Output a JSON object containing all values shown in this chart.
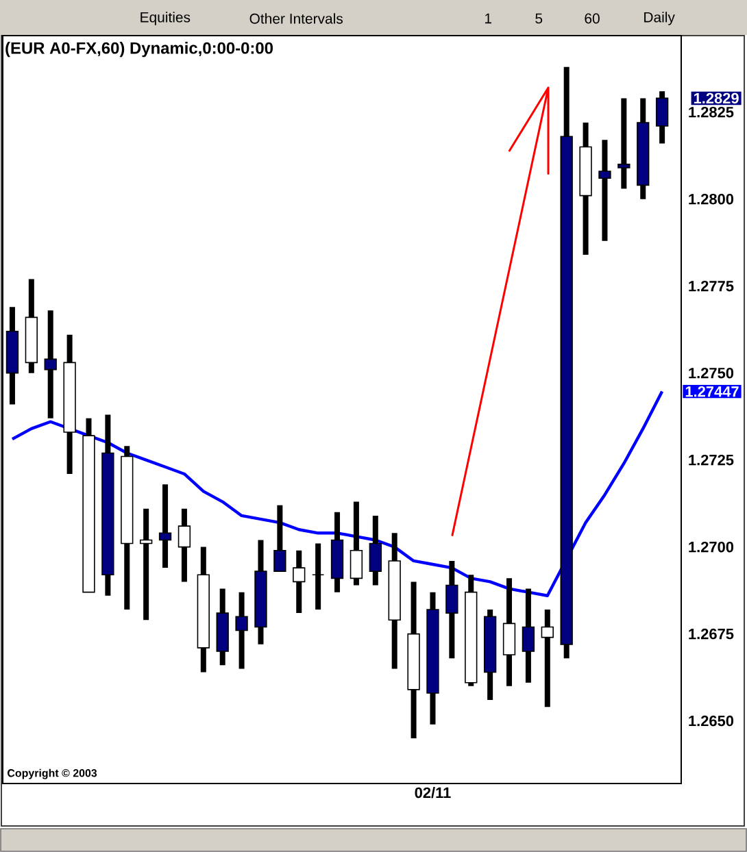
{
  "chart_data": {
    "type": "candlestick",
    "title": "(EUR A0-FX,60) Dynamic,0:00-0:00",
    "categories": [
      null,
      null,
      null,
      null,
      null,
      null,
      null,
      null,
      null,
      null,
      null,
      null,
      null,
      null,
      null,
      null,
      null,
      null,
      null,
      null,
      null,
      null,
      "02/11",
      null,
      null,
      null,
      null,
      null,
      null,
      null,
      null,
      null,
      null,
      null,
      null
    ],
    "ohlc": [
      [
        1.275,
        1.2769,
        1.2741,
        1.2762
      ],
      [
        1.2766,
        1.2777,
        1.275,
        1.2753
      ],
      [
        1.2751,
        1.2768,
        1.2737,
        1.2754
      ],
      [
        1.2753,
        1.2761,
        1.2721,
        1.2733
      ],
      [
        1.2732,
        1.2737,
        1.2687,
        1.2687
      ],
      [
        1.2692,
        1.2738,
        1.2686,
        1.2727
      ],
      [
        1.2726,
        1.2729,
        1.2682,
        1.2701
      ],
      [
        1.2702,
        1.2711,
        1.2679,
        1.2701
      ],
      [
        1.2702,
        1.2718,
        1.2694,
        1.2704
      ],
      [
        1.2706,
        1.2711,
        1.269,
        1.27
      ],
      [
        1.2692,
        1.27,
        1.2664,
        1.2671
      ],
      [
        1.267,
        1.2688,
        1.2666,
        1.2681
      ],
      [
        1.2676,
        1.2687,
        1.2665,
        1.268
      ],
      [
        1.2677,
        1.2702,
        1.2672,
        1.2693
      ],
      [
        1.2693,
        1.2712,
        1.2693,
        1.2699
      ],
      [
        1.2694,
        1.2699,
        1.2681,
        1.269
      ],
      [
        1.2692,
        1.2701,
        1.2682,
        1.2692
      ],
      [
        1.2691,
        1.271,
        1.2687,
        1.2702
      ],
      [
        1.2699,
        1.2713,
        1.2689,
        1.2691
      ],
      [
        1.2693,
        1.2709,
        1.2689,
        1.2701
      ],
      [
        1.2696,
        1.2704,
        1.2665,
        1.2679
      ],
      [
        1.2675,
        1.269,
        1.2645,
        1.2659
      ],
      [
        1.2658,
        1.2687,
        1.2649,
        1.2682
      ],
      [
        1.2681,
        1.2696,
        1.2668,
        1.2689
      ],
      [
        1.2687,
        1.2692,
        1.266,
        1.2661
      ],
      [
        1.2664,
        1.2682,
        1.2656,
        1.268
      ],
      [
        1.2678,
        1.2691,
        1.266,
        1.2669
      ],
      [
        1.267,
        1.2688,
        1.2661,
        1.2677
      ],
      [
        1.2677,
        1.2682,
        1.2654,
        1.2674
      ],
      [
        1.2672,
        1.2838,
        1.2668,
        1.2818
      ],
      [
        1.2815,
        1.2822,
        1.2784,
        1.2801
      ],
      [
        1.2806,
        1.2817,
        1.2788,
        1.2808
      ],
      [
        1.2809,
        1.2829,
        1.2803,
        1.281
      ],
      [
        1.2804,
        1.2829,
        1.28,
        1.2822
      ],
      [
        1.2821,
        1.2831,
        1.2816,
        1.2829
      ]
    ],
    "colors": [
      "#000080",
      "#ffffff",
      "#000080",
      "#ffffff",
      "#ffffff",
      "#000080",
      "#ffffff",
      "#ffffff",
      "#000080",
      "#ffffff",
      "#ffffff",
      "#000080",
      "#000080",
      "#000080",
      "#000080",
      "#ffffff",
      "#000000",
      "#000080",
      "#ffffff",
      "#000080",
      "#ffffff",
      "#ffffff",
      "#000080",
      "#000080",
      "#ffffff",
      "#000080",
      "#ffffff",
      "#000080",
      "#ffffff",
      "#000080",
      "#ffffff",
      "#000080",
      "#000080",
      "#000080",
      "#000080"
    ],
    "series": [
      {
        "type": "line",
        "color": "#0000ff",
        "values": [
          1.2731,
          1.2734,
          1.2736,
          null,
          1.2732,
          1.273,
          1.2727,
          1.2725,
          1.2723,
          1.2721,
          1.2716,
          1.2713,
          1.2709,
          1.2708,
          1.2707,
          1.2705,
          1.2704,
          1.2704,
          1.2703,
          1.2702,
          1.27,
          1.2696,
          1.2695,
          1.2694,
          1.2691,
          1.269,
          1.2688,
          1.2687,
          1.2686,
          null,
          1.2707,
          1.2715,
          1.2724,
          1.2734,
          1.27447
        ]
      }
    ],
    "ylim": [
      1.2632,
      1.2847
    ],
    "yticks": [
      {
        "value": 1.265,
        "label": "1.2650"
      },
      1.2675,
      {
        "value": 1.27,
        "label": "1.2700"
      },
      1.2725,
      {
        "value": 1.275,
        "label": "1.2750"
      },
      1.2775,
      {
        "value": 1.28,
        "label": "1.2800"
      },
      1.2825
    ],
    "annotations": [
      "Equities",
      "Other Intervals",
      "1",
      "5",
      "60",
      "Daily",
      "Copyright © 2003",
      "1.2829",
      "1.27447"
    ]
  }
}
